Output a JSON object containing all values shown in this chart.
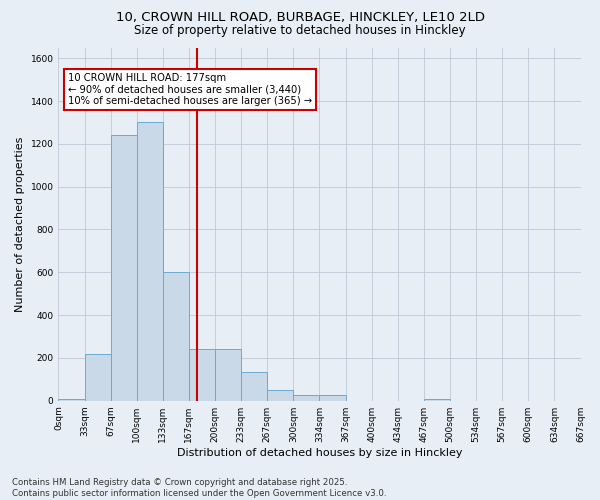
{
  "title_line1": "10, CROWN HILL ROAD, BURBAGE, HINCKLEY, LE10 2LD",
  "title_line2": "Size of property relative to detached houses in Hinckley",
  "xlabel": "Distribution of detached houses by size in Hinckley",
  "ylabel": "Number of detached properties",
  "bin_labels": [
    "0sqm",
    "33sqm",
    "67sqm",
    "100sqm",
    "133sqm",
    "167sqm",
    "200sqm",
    "233sqm",
    "267sqm",
    "300sqm",
    "334sqm",
    "367sqm",
    "400sqm",
    "434sqm",
    "467sqm",
    "500sqm",
    "534sqm",
    "567sqm",
    "600sqm",
    "634sqm",
    "667sqm"
  ],
  "bar_values": [
    10,
    220,
    1240,
    1300,
    600,
    240,
    240,
    135,
    50,
    28,
    25,
    0,
    0,
    0,
    10,
    0,
    0,
    0,
    0,
    0
  ],
  "bar_color": "#c9d9e8",
  "bar_edge_color": "#6aaad4",
  "vline_color": "#cc0000",
  "annotation_text": "10 CROWN HILL ROAD: 177sqm\n← 90% of detached houses are smaller (3,440)\n10% of semi-detached houses are larger (365) →",
  "annotation_box_color": "#cc0000",
  "ylim": [
    0,
    1650
  ],
  "yticks": [
    0,
    200,
    400,
    600,
    800,
    1000,
    1200,
    1400,
    1600
  ],
  "grid_color": "#c0c8d8",
  "background_color": "#e8eef5",
  "footer_text": "Contains HM Land Registry data © Crown copyright and database right 2025.\nContains public sector information licensed under the Open Government Licence v3.0.",
  "title_fontsize": 9.5,
  "subtitle_fontsize": 8.5,
  "axis_label_fontsize": 8,
  "tick_fontsize": 6.5,
  "annotation_fontsize": 7.2,
  "footer_fontsize": 6.2
}
